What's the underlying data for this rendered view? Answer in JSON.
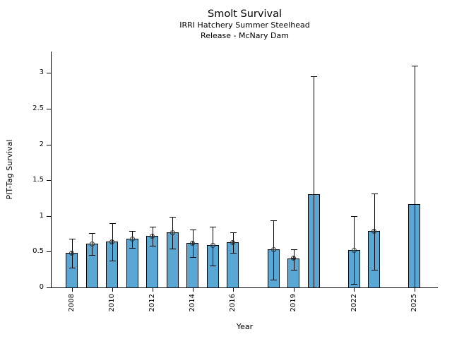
{
  "figure": {
    "title": "Smolt Survival",
    "subtitle_line1": "IRRI Hatchery Summer Steelhead",
    "subtitle_line2": "Release - McNary Dam"
  },
  "chart_data": {
    "type": "bar",
    "title": "Smolt Survival",
    "subtitle": [
      "IRRI Hatchery Summer Steelhead",
      "Release - McNary Dam"
    ],
    "xlabel": "Year",
    "ylabel": "PIT-Tag Survival",
    "ylim": [
      0,
      3.3
    ],
    "xlim": [
      2007.0,
      2026.16
    ],
    "grid": false,
    "legend": "none",
    "bar_color": "#5aa7d4",
    "bar_edge_color": "#000000",
    "error_bar_color": "#000000",
    "marker_style": "circle-plus",
    "yticks": [
      {
        "value": 0,
        "label": "0"
      },
      {
        "value": 0.5,
        "label": "0.5"
      },
      {
        "value": 1,
        "label": "1"
      },
      {
        "value": 1.5,
        "label": "1.5"
      },
      {
        "value": 2,
        "label": "2"
      },
      {
        "value": 2.5,
        "label": "2.5"
      },
      {
        "value": 3,
        "label": "3"
      }
    ],
    "xticks": [
      {
        "year": 2008,
        "label": "2008"
      },
      {
        "year": 2010,
        "label": "2010"
      },
      {
        "year": 2012,
        "label": "2012"
      },
      {
        "year": 2014,
        "label": "2014"
      },
      {
        "year": 2016,
        "label": "2016"
      },
      {
        "year": 2019,
        "label": "2019"
      },
      {
        "year": 2022,
        "label": "2022"
      },
      {
        "year": 2025,
        "label": "2025"
      }
    ],
    "points": [
      {
        "year": 2008,
        "value": 0.48,
        "err_lo": 0.28,
        "err_hi": 0.68,
        "marker": true
      },
      {
        "year": 2009,
        "value": 0.61,
        "err_lo": 0.45,
        "err_hi": 0.76,
        "marker": true
      },
      {
        "year": 2010,
        "value": 0.64,
        "err_lo": 0.38,
        "err_hi": 0.9,
        "marker": true
      },
      {
        "year": 2011,
        "value": 0.68,
        "err_lo": 0.55,
        "err_hi": 0.79,
        "marker": true
      },
      {
        "year": 2012,
        "value": 0.72,
        "err_lo": 0.58,
        "err_hi": 0.85,
        "marker": true
      },
      {
        "year": 2013,
        "value": 0.77,
        "err_lo": 0.54,
        "err_hi": 0.99,
        "marker": true
      },
      {
        "year": 2014,
        "value": 0.62,
        "err_lo": 0.42,
        "err_hi": 0.81,
        "marker": true
      },
      {
        "year": 2015,
        "value": 0.59,
        "err_lo": 0.31,
        "err_hi": 0.85,
        "marker": true
      },
      {
        "year": 2016,
        "value": 0.63,
        "err_lo": 0.48,
        "err_hi": 0.77,
        "marker": true
      },
      {
        "year": 2018,
        "value": 0.53,
        "err_lo": 0.11,
        "err_hi": 0.94,
        "marker": true
      },
      {
        "year": 2019,
        "value": 0.41,
        "err_lo": 0.25,
        "err_hi": 0.53,
        "marker": true
      },
      {
        "year": 2020,
        "value": 1.3,
        "err_lo": 0.0,
        "err_hi": 2.95,
        "marker": false
      },
      {
        "year": 2022,
        "value": 0.52,
        "err_lo": 0.05,
        "err_hi": 1.0,
        "marker": true
      },
      {
        "year": 2023,
        "value": 0.79,
        "err_lo": 0.25,
        "err_hi": 1.31,
        "marker": true
      },
      {
        "year": 2025,
        "value": 1.17,
        "err_lo": 0.0,
        "err_hi": 3.1,
        "marker": false
      }
    ]
  }
}
